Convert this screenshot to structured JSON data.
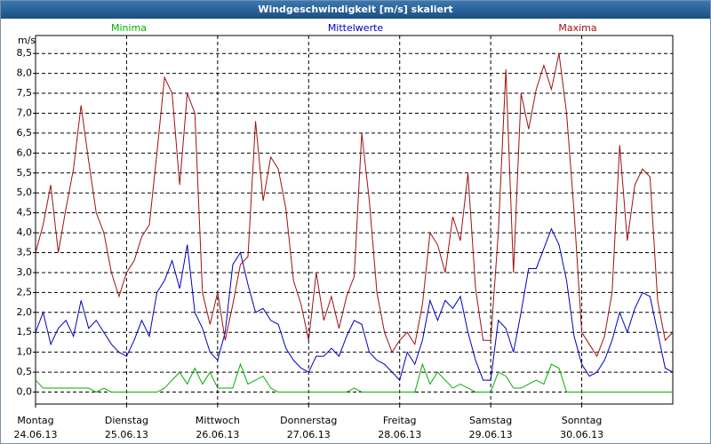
{
  "chart_data": {
    "type": "line",
    "title": "Windgeschwindigkeit [m/s] skaliert",
    "y_label": "m/s",
    "x": [
      0,
      2,
      4,
      6,
      8,
      10,
      12,
      14,
      16,
      18,
      20,
      22,
      24,
      26,
      28,
      30,
      32,
      34,
      36,
      38,
      40,
      42,
      44,
      46,
      48,
      50,
      52,
      54,
      56,
      58,
      60,
      62,
      64,
      66,
      68,
      70,
      72,
      74,
      76,
      78,
      80,
      82,
      84,
      86,
      88,
      90,
      92,
      94,
      96,
      98,
      100,
      102,
      104,
      106,
      108,
      110,
      112,
      114,
      116,
      118,
      120,
      122,
      124,
      126,
      128,
      130,
      132,
      134,
      136,
      138,
      140,
      142,
      144,
      146,
      148,
      150,
      152,
      154,
      156,
      158,
      160,
      162,
      164,
      166,
      168
    ],
    "series": [
      {
        "name": "Minima",
        "color": "#00b000",
        "values": [
          0.3,
          0.1,
          0.1,
          0.1,
          0.1,
          0.1,
          0.1,
          0.1,
          0.0,
          0.1,
          0,
          0,
          0,
          0,
          0,
          0,
          0,
          0.1,
          0.3,
          0.5,
          0.2,
          0.6,
          0.2,
          0.5,
          0.1,
          0.1,
          0.1,
          0.7,
          0.2,
          0.3,
          0.4,
          0.1,
          0,
          0,
          0,
          0,
          0,
          0,
          0,
          0,
          0,
          0,
          0.1,
          0,
          0,
          0,
          0,
          0,
          0,
          0,
          0,
          0.7,
          0.2,
          0.5,
          0.3,
          0.1,
          0.2,
          0.1,
          0,
          0,
          0,
          0.5,
          0.4,
          0.1,
          0.1,
          0.2,
          0.3,
          0.2,
          0.7,
          0.6,
          0,
          0,
          0,
          0,
          0,
          0,
          0,
          0,
          0,
          0,
          0,
          0,
          0,
          0,
          0
        ]
      },
      {
        "name": "Mittelwerte",
        "color": "#0000c0",
        "values": [
          1.5,
          2.0,
          1.2,
          1.6,
          1.8,
          1.4,
          2.3,
          1.6,
          1.8,
          1.5,
          1.2,
          1.0,
          0.9,
          1.3,
          1.8,
          1.4,
          2.5,
          2.8,
          3.3,
          2.6,
          3.7,
          2.0,
          1.6,
          1.0,
          0.8,
          1.5,
          3.2,
          3.5,
          2.7,
          2.0,
          2.1,
          1.8,
          1.7,
          1.1,
          0.8,
          0.6,
          0.5,
          0.9,
          0.9,
          1.1,
          0.9,
          1.4,
          1.8,
          1.7,
          1.0,
          0.8,
          0.7,
          0.5,
          0.3,
          1.0,
          0.7,
          1.3,
          2.3,
          1.8,
          2.3,
          2.1,
          2.4,
          1.5,
          0.8,
          0.3,
          0.3,
          1.8,
          1.6,
          1.0,
          2.0,
          3.1,
          3.1,
          3.6,
          4.1,
          3.7,
          2.8,
          1.4,
          0.7,
          0.4,
          0.5,
          0.8,
          1.3,
          2.0,
          1.5,
          2.1,
          2.5,
          2.4,
          1.5,
          0.6,
          0.5
        ]
      },
      {
        "name": "Maxima",
        "color": "#a01010",
        "values": [
          3.5,
          4.2,
          5.2,
          3.5,
          4.6,
          5.6,
          7.2,
          5.8,
          4.5,
          4.0,
          3.0,
          2.4,
          3.0,
          3.3,
          3.9,
          4.2,
          6.0,
          7.9,
          7.5,
          5.2,
          7.5,
          7.0,
          2.5,
          1.7,
          2.5,
          1.3,
          2.2,
          3.2,
          3.4,
          6.8,
          4.8,
          5.9,
          5.6,
          4.6,
          2.8,
          2.2,
          1.3,
          3.0,
          1.8,
          2.4,
          1.6,
          2.4,
          2.9,
          6.5,
          4.8,
          2.5,
          1.5,
          1.0,
          1.3,
          1.5,
          1.2,
          2.2,
          4.0,
          3.7,
          3.0,
          4.4,
          3.8,
          5.5,
          2.6,
          1.3,
          1.3,
          4.0,
          8.1,
          3.0,
          7.5,
          6.6,
          7.6,
          8.2,
          7.6,
          8.5,
          7.0,
          4.5,
          1.5,
          1.2,
          0.9,
          1.4,
          2.5,
          6.2,
          3.8,
          5.2,
          5.6,
          5.4,
          2.3,
          1.3,
          1.5
        ]
      }
    ],
    "xlim": [
      0,
      168
    ],
    "xticks": [
      {
        "value": 0,
        "label": [
          "Montag",
          "24.06.13"
        ]
      },
      {
        "value": 24,
        "label": [
          "Dienstag",
          "25.06.13"
        ]
      },
      {
        "value": 48,
        "label": [
          "Mittwoch",
          "26.06.13"
        ]
      },
      {
        "value": 72,
        "label": [
          "Donnerstag",
          "27.06.13"
        ]
      },
      {
        "value": 96,
        "label": [
          "Freitag",
          "28.06.13"
        ]
      },
      {
        "value": 120,
        "label": [
          "Samstag",
          "29.06.13"
        ]
      },
      {
        "value": 144,
        "label": [
          "Sonntag",
          "30.06.13"
        ]
      }
    ],
    "ylim": [
      -0.3,
      8.95
    ],
    "yticks": [
      {
        "value": 0,
        "label": "0,0"
      },
      {
        "value": 0.5,
        "label": "0,5"
      },
      {
        "value": 1,
        "label": "1,0"
      },
      {
        "value": 1.5,
        "label": "1,5"
      },
      {
        "value": 2,
        "label": "2,0"
      },
      {
        "value": 2.5,
        "label": "2,5"
      },
      {
        "value": 3,
        "label": "3,0"
      },
      {
        "value": 3.5,
        "label": "3,5"
      },
      {
        "value": 4,
        "label": "4,0"
      },
      {
        "value": 4.5,
        "label": "4,5"
      },
      {
        "value": 5,
        "label": "5,0"
      },
      {
        "value": 5.5,
        "label": "5,5"
      },
      {
        "value": 6,
        "label": "6,0"
      },
      {
        "value": 6.5,
        "label": "6,5"
      },
      {
        "value": 7,
        "label": "7,0"
      },
      {
        "value": 7.5,
        "label": "7,5"
      },
      {
        "value": 8,
        "label": "8,0"
      },
      {
        "value": 8.5,
        "label": "8,5"
      }
    ],
    "grid": true
  }
}
